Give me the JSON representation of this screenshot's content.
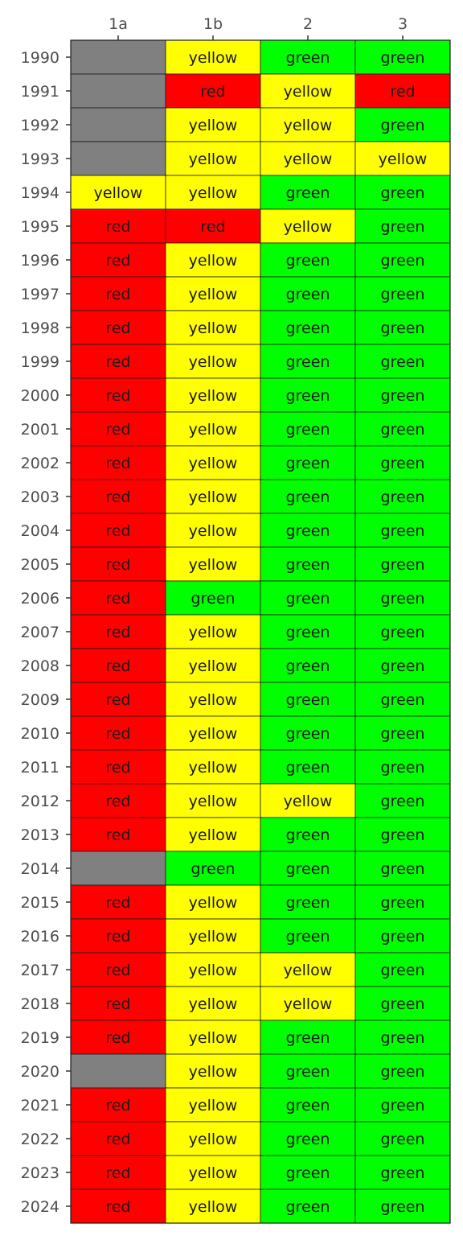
{
  "chart_data": {
    "type": "heatmap",
    "title": "",
    "xlabel": "",
    "ylabel": "",
    "columns": [
      "1a",
      "1b",
      "2",
      "3"
    ],
    "rows": [
      "1990",
      "1991",
      "1992",
      "1993",
      "1994",
      "1995",
      "1996",
      "1997",
      "1998",
      "1999",
      "2000",
      "2001",
      "2002",
      "2003",
      "2004",
      "2005",
      "2006",
      "2007",
      "2008",
      "2009",
      "2010",
      "2011",
      "2012",
      "2013",
      "2014",
      "2015",
      "2016",
      "2017",
      "2018",
      "2019",
      "2020",
      "2021",
      "2022",
      "2023",
      "2024"
    ],
    "values": [
      [
        null,
        "yellow",
        "green",
        "green"
      ],
      [
        null,
        "red",
        "yellow",
        "red"
      ],
      [
        null,
        "yellow",
        "yellow",
        "green"
      ],
      [
        null,
        "yellow",
        "yellow",
        "yellow"
      ],
      [
        "yellow",
        "yellow",
        "green",
        "green"
      ],
      [
        "red",
        "red",
        "yellow",
        "green"
      ],
      [
        "red",
        "yellow",
        "green",
        "green"
      ],
      [
        "red",
        "yellow",
        "green",
        "green"
      ],
      [
        "red",
        "yellow",
        "green",
        "green"
      ],
      [
        "red",
        "yellow",
        "green",
        "green"
      ],
      [
        "red",
        "yellow",
        "green",
        "green"
      ],
      [
        "red",
        "yellow",
        "green",
        "green"
      ],
      [
        "red",
        "yellow",
        "green",
        "green"
      ],
      [
        "red",
        "yellow",
        "green",
        "green"
      ],
      [
        "red",
        "yellow",
        "green",
        "green"
      ],
      [
        "red",
        "yellow",
        "green",
        "green"
      ],
      [
        "red",
        "green",
        "green",
        "green"
      ],
      [
        "red",
        "yellow",
        "green",
        "green"
      ],
      [
        "red",
        "yellow",
        "green",
        "green"
      ],
      [
        "red",
        "yellow",
        "green",
        "green"
      ],
      [
        "red",
        "yellow",
        "green",
        "green"
      ],
      [
        "red",
        "yellow",
        "green",
        "green"
      ],
      [
        "red",
        "yellow",
        "yellow",
        "green"
      ],
      [
        "red",
        "yellow",
        "green",
        "green"
      ],
      [
        null,
        "green",
        "green",
        "green"
      ],
      [
        "red",
        "yellow",
        "green",
        "green"
      ],
      [
        "red",
        "yellow",
        "green",
        "green"
      ],
      [
        "red",
        "yellow",
        "yellow",
        "green"
      ],
      [
        "red",
        "yellow",
        "yellow",
        "green"
      ],
      [
        "red",
        "yellow",
        "green",
        "green"
      ],
      [
        null,
        "yellow",
        "green",
        "green"
      ],
      [
        "red",
        "yellow",
        "green",
        "green"
      ],
      [
        "red",
        "yellow",
        "green",
        "green"
      ],
      [
        "red",
        "yellow",
        "green",
        "green"
      ],
      [
        "red",
        "yellow",
        "green",
        "green"
      ]
    ],
    "colors": {
      "red": "#ff0000",
      "yellow": "#ffff00",
      "green": "#00ff00",
      "missing": "#808080"
    },
    "grid": false,
    "legend": "none"
  }
}
